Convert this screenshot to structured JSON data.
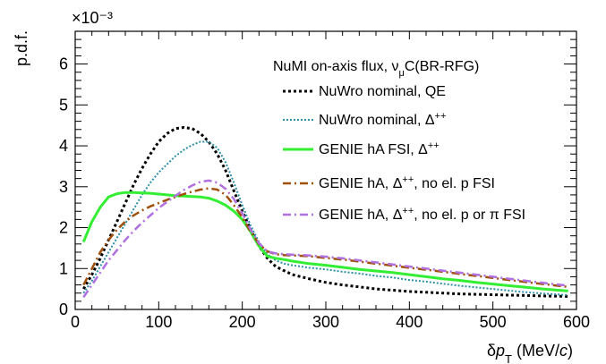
{
  "chart_data": {
    "type": "line",
    "title": "",
    "xlabel": "δp_T (MeV/c)",
    "ylabel": "p.d.f.",
    "y_multiplier": "×10⁻³",
    "xlim": [
      0,
      600
    ],
    "ylim": [
      0,
      6.8
    ],
    "x_ticks": [
      0,
      100,
      200,
      300,
      400,
      500,
      600
    ],
    "y_ticks": [
      0,
      1,
      2,
      3,
      4,
      5,
      6
    ],
    "grid": false,
    "legend_position": "top-right",
    "legend_header": "NuMI on-axis flux, ν_μC(BR-RFG)",
    "series": [
      {
        "name": "NuWro nominal, QE",
        "color": "#000000",
        "style": "dotted-bold",
        "x": [
          10,
          20,
          30,
          40,
          50,
          60,
          70,
          80,
          90,
          100,
          110,
          120,
          130,
          140,
          150,
          160,
          170,
          180,
          190,
          200,
          210,
          220,
          230,
          240,
          250,
          260,
          280,
          300,
          320,
          340,
          360,
          380,
          400,
          420,
          440,
          460,
          480,
          500,
          520,
          540,
          560,
          590
        ],
        "y": [
          0.5,
          0.85,
          1.25,
          1.7,
          2.15,
          2.6,
          3.05,
          3.45,
          3.8,
          4.1,
          4.3,
          4.42,
          4.45,
          4.42,
          4.3,
          4.1,
          3.8,
          3.4,
          2.9,
          2.4,
          1.95,
          1.55,
          1.25,
          1.05,
          0.95,
          0.85,
          0.75,
          0.66,
          0.6,
          0.55,
          0.5,
          0.47,
          0.44,
          0.42,
          0.4,
          0.38,
          0.37,
          0.36,
          0.35,
          0.34,
          0.33,
          0.32
        ]
      },
      {
        "name": "NuWro nominal, Δ⁺⁺",
        "color": "#2e8fa8",
        "style": "dotted",
        "x": [
          10,
          20,
          30,
          40,
          50,
          60,
          70,
          80,
          90,
          100,
          110,
          120,
          130,
          140,
          150,
          160,
          170,
          180,
          190,
          200,
          210,
          220,
          230,
          240,
          250,
          260,
          280,
          300,
          320,
          340,
          360,
          380,
          400,
          420,
          440,
          460,
          480,
          500,
          520,
          540,
          560,
          590
        ],
        "y": [
          0.4,
          0.7,
          1.05,
          1.4,
          1.75,
          2.1,
          2.45,
          2.8,
          3.1,
          3.35,
          3.55,
          3.75,
          3.9,
          4.02,
          4.1,
          4.1,
          3.95,
          3.6,
          3.1,
          2.55,
          2.05,
          1.65,
          1.35,
          1.2,
          1.12,
          1.08,
          1.02,
          0.98,
          0.92,
          0.88,
          0.82,
          0.78,
          0.72,
          0.68,
          0.63,
          0.58,
          0.54,
          0.5,
          0.46,
          0.42,
          0.39,
          0.35
        ]
      },
      {
        "name": "GENIE hA FSI, Δ⁺⁺",
        "color": "#33ee33",
        "style": "solid",
        "x": [
          10,
          20,
          30,
          40,
          50,
          60,
          70,
          80,
          90,
          100,
          110,
          120,
          130,
          140,
          150,
          160,
          170,
          180,
          190,
          200,
          210,
          220,
          230,
          240,
          250,
          260,
          280,
          300,
          320,
          340,
          360,
          380,
          400,
          420,
          440,
          460,
          480,
          500,
          520,
          540,
          560,
          590
        ],
        "y": [
          1.65,
          2.15,
          2.5,
          2.75,
          2.83,
          2.86,
          2.86,
          2.85,
          2.84,
          2.82,
          2.8,
          2.78,
          2.77,
          2.76,
          2.75,
          2.72,
          2.65,
          2.55,
          2.4,
          2.2,
          1.9,
          1.55,
          1.3,
          1.25,
          1.22,
          1.18,
          1.12,
          1.08,
          1.03,
          0.98,
          0.94,
          0.9,
          0.85,
          0.8,
          0.75,
          0.71,
          0.66,
          0.62,
          0.58,
          0.54,
          0.5,
          0.45
        ]
      },
      {
        "name": "GENIE hA, Δ⁺⁺, no el. p FSI",
        "color": "#a0500a",
        "style": "dash-dot",
        "x": [
          10,
          20,
          30,
          40,
          50,
          60,
          70,
          80,
          90,
          100,
          110,
          120,
          130,
          140,
          150,
          160,
          170,
          180,
          190,
          200,
          210,
          220,
          230,
          240,
          250,
          260,
          280,
          300,
          320,
          340,
          360,
          380,
          400,
          420,
          440,
          460,
          480,
          500,
          520,
          540,
          560,
          590
        ],
        "y": [
          0.6,
          1.0,
          1.4,
          1.7,
          1.95,
          2.15,
          2.3,
          2.42,
          2.52,
          2.6,
          2.68,
          2.75,
          2.82,
          2.88,
          2.93,
          2.96,
          2.93,
          2.8,
          2.55,
          2.25,
          1.9,
          1.6,
          1.42,
          1.35,
          1.33,
          1.32,
          1.3,
          1.26,
          1.22,
          1.17,
          1.12,
          1.07,
          1.02,
          0.97,
          0.92,
          0.87,
          0.82,
          0.77,
          0.72,
          0.67,
          0.62,
          0.55
        ]
      },
      {
        "name": "GENIE hA, Δ⁺⁺, no el. p or π FSI",
        "color": "#b070e0",
        "style": "dash-dot",
        "x": [
          10,
          20,
          30,
          40,
          50,
          60,
          70,
          80,
          90,
          100,
          110,
          120,
          130,
          140,
          150,
          160,
          170,
          180,
          190,
          200,
          210,
          220,
          230,
          240,
          250,
          260,
          280,
          300,
          320,
          340,
          360,
          380,
          400,
          420,
          440,
          460,
          480,
          500,
          520,
          540,
          560,
          590
        ],
        "y": [
          0.3,
          0.6,
          0.9,
          1.2,
          1.45,
          1.7,
          1.92,
          2.12,
          2.3,
          2.48,
          2.63,
          2.78,
          2.92,
          3.03,
          3.12,
          3.15,
          3.1,
          2.95,
          2.7,
          2.35,
          1.95,
          1.62,
          1.42,
          1.37,
          1.35,
          1.34,
          1.32,
          1.29,
          1.25,
          1.2,
          1.15,
          1.1,
          1.05,
          1.0,
          0.95,
          0.9,
          0.85,
          0.8,
          0.75,
          0.7,
          0.65,
          0.58
        ]
      }
    ]
  }
}
